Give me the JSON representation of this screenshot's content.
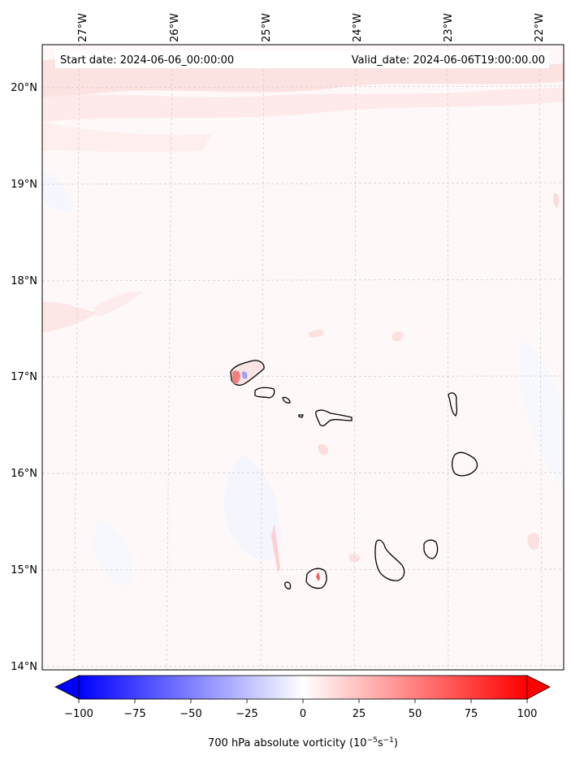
{
  "header": {
    "start_date": "Start date: 2024-06-06_00:00:00",
    "valid_date": "Valid_date: 2024-06-06T19:00:00.00"
  },
  "map": {
    "lon_labels": [
      "27°W",
      "26°W",
      "25°W",
      "24°W",
      "23°W",
      "22°W"
    ],
    "lat_labels": [
      "20°N",
      "19°N",
      "18°N",
      "17°N",
      "16°N",
      "15°N",
      "14°N"
    ],
    "gridlines": true
  },
  "colorbar": {
    "ticks": [
      "−100",
      "−75",
      "−50",
      "−25",
      "0",
      "25",
      "50",
      "75",
      "100"
    ],
    "label_prefix": "700 hPa absolute vorticity (10",
    "label_exp1": "−5",
    "label_mid": "s",
    "label_exp2": "−1",
    "label_suffix": ")",
    "colors": {
      "min": "#0000ff",
      "mid": "#ffffff",
      "max": "#ff0000"
    }
  }
}
